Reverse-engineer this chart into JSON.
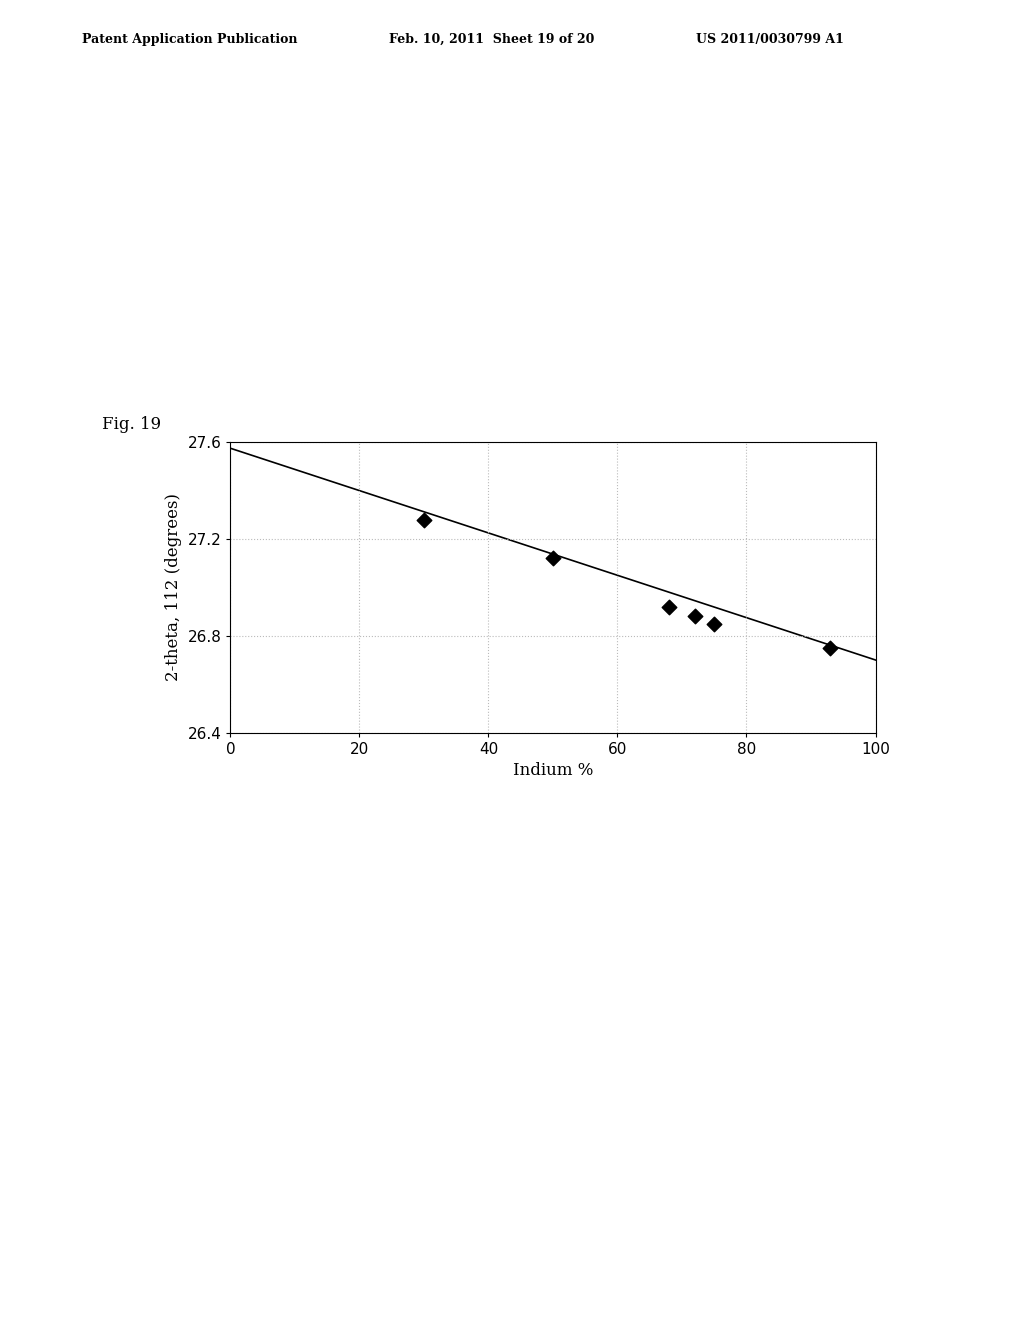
{
  "scatter_x": [
    30,
    50,
    68,
    72,
    75,
    93
  ],
  "scatter_y": [
    27.28,
    27.12,
    26.92,
    26.88,
    26.85,
    26.75
  ],
  "line_x": [
    0,
    100
  ],
  "line_y": [
    27.575,
    26.7
  ],
  "xlabel": "Indium %",
  "ylabel": "2-theta, 112 (degrees)",
  "xlim": [
    0,
    100
  ],
  "ylim": [
    26.4,
    27.6
  ],
  "yticks": [
    26.4,
    26.8,
    27.2,
    27.6
  ],
  "xticks": [
    0,
    20,
    40,
    60,
    80,
    100
  ],
  "fig_label": "Fig. 19",
  "header_left": "Patent Application Publication",
  "header_mid": "Feb. 10, 2011  Sheet 19 of 20",
  "header_right": "US 2011/0030799 A1",
  "background_color": "#ffffff",
  "marker_color": "#000000",
  "line_color": "#000000",
  "grid_color": "#bbbbbb"
}
